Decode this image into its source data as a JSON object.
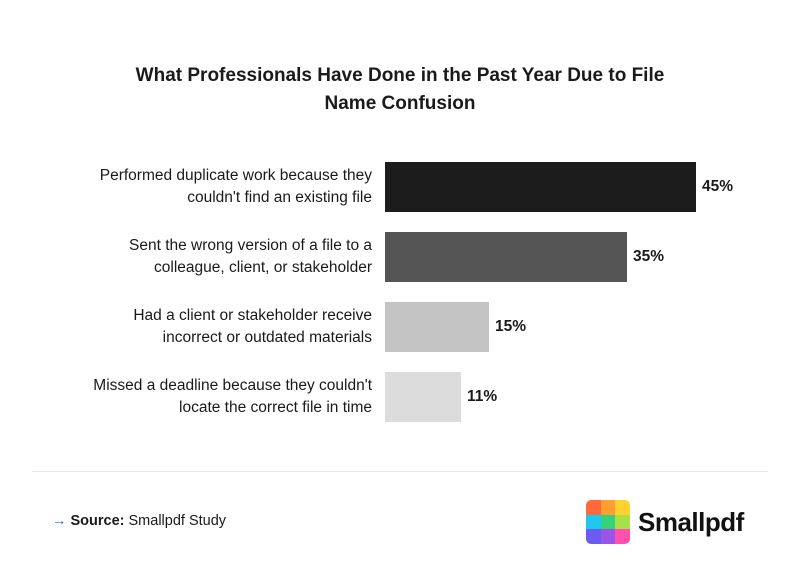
{
  "header": {
    "title_lines": [
      "What Professionals Have Done in the Past Year Due to File",
      "Name Confusion"
    ]
  },
  "chart_data": {
    "type": "bar",
    "orientation": "horizontal",
    "categories": [
      [
        "Performed duplicate work because they",
        "couldn't find an existing file"
      ],
      [
        "Sent the wrong version of a file to a",
        "colleague, client, or stakeholder"
      ],
      [
        "Had a client or stakeholder receive",
        "incorrect or outdated materials"
      ],
      [
        "Missed a deadline because they couldn't",
        "locate the correct file in time"
      ]
    ],
    "values": [
      45,
      35,
      15,
      11
    ],
    "value_labels": [
      "45%",
      "35%",
      "15%",
      "11%"
    ],
    "colors": [
      "#1c1c1c",
      "#555555",
      "#c4c4c4",
      "#dcdcdc"
    ],
    "xlim": [
      0,
      65
    ],
    "grid": false,
    "legend": "none"
  },
  "footer": {
    "arrow": "→",
    "source_label": "Source:",
    "source_text": "Smallpdf Study"
  },
  "brand": {
    "name": "Smallpdf",
    "logo_colors": [
      "#ff6a3d",
      "#ff9f2f",
      "#ffd22e",
      "#1ec8f0",
      "#34d27a",
      "#a8e04a",
      "#6a5cf0",
      "#9a54e8",
      "#ff4fb0"
    ]
  }
}
